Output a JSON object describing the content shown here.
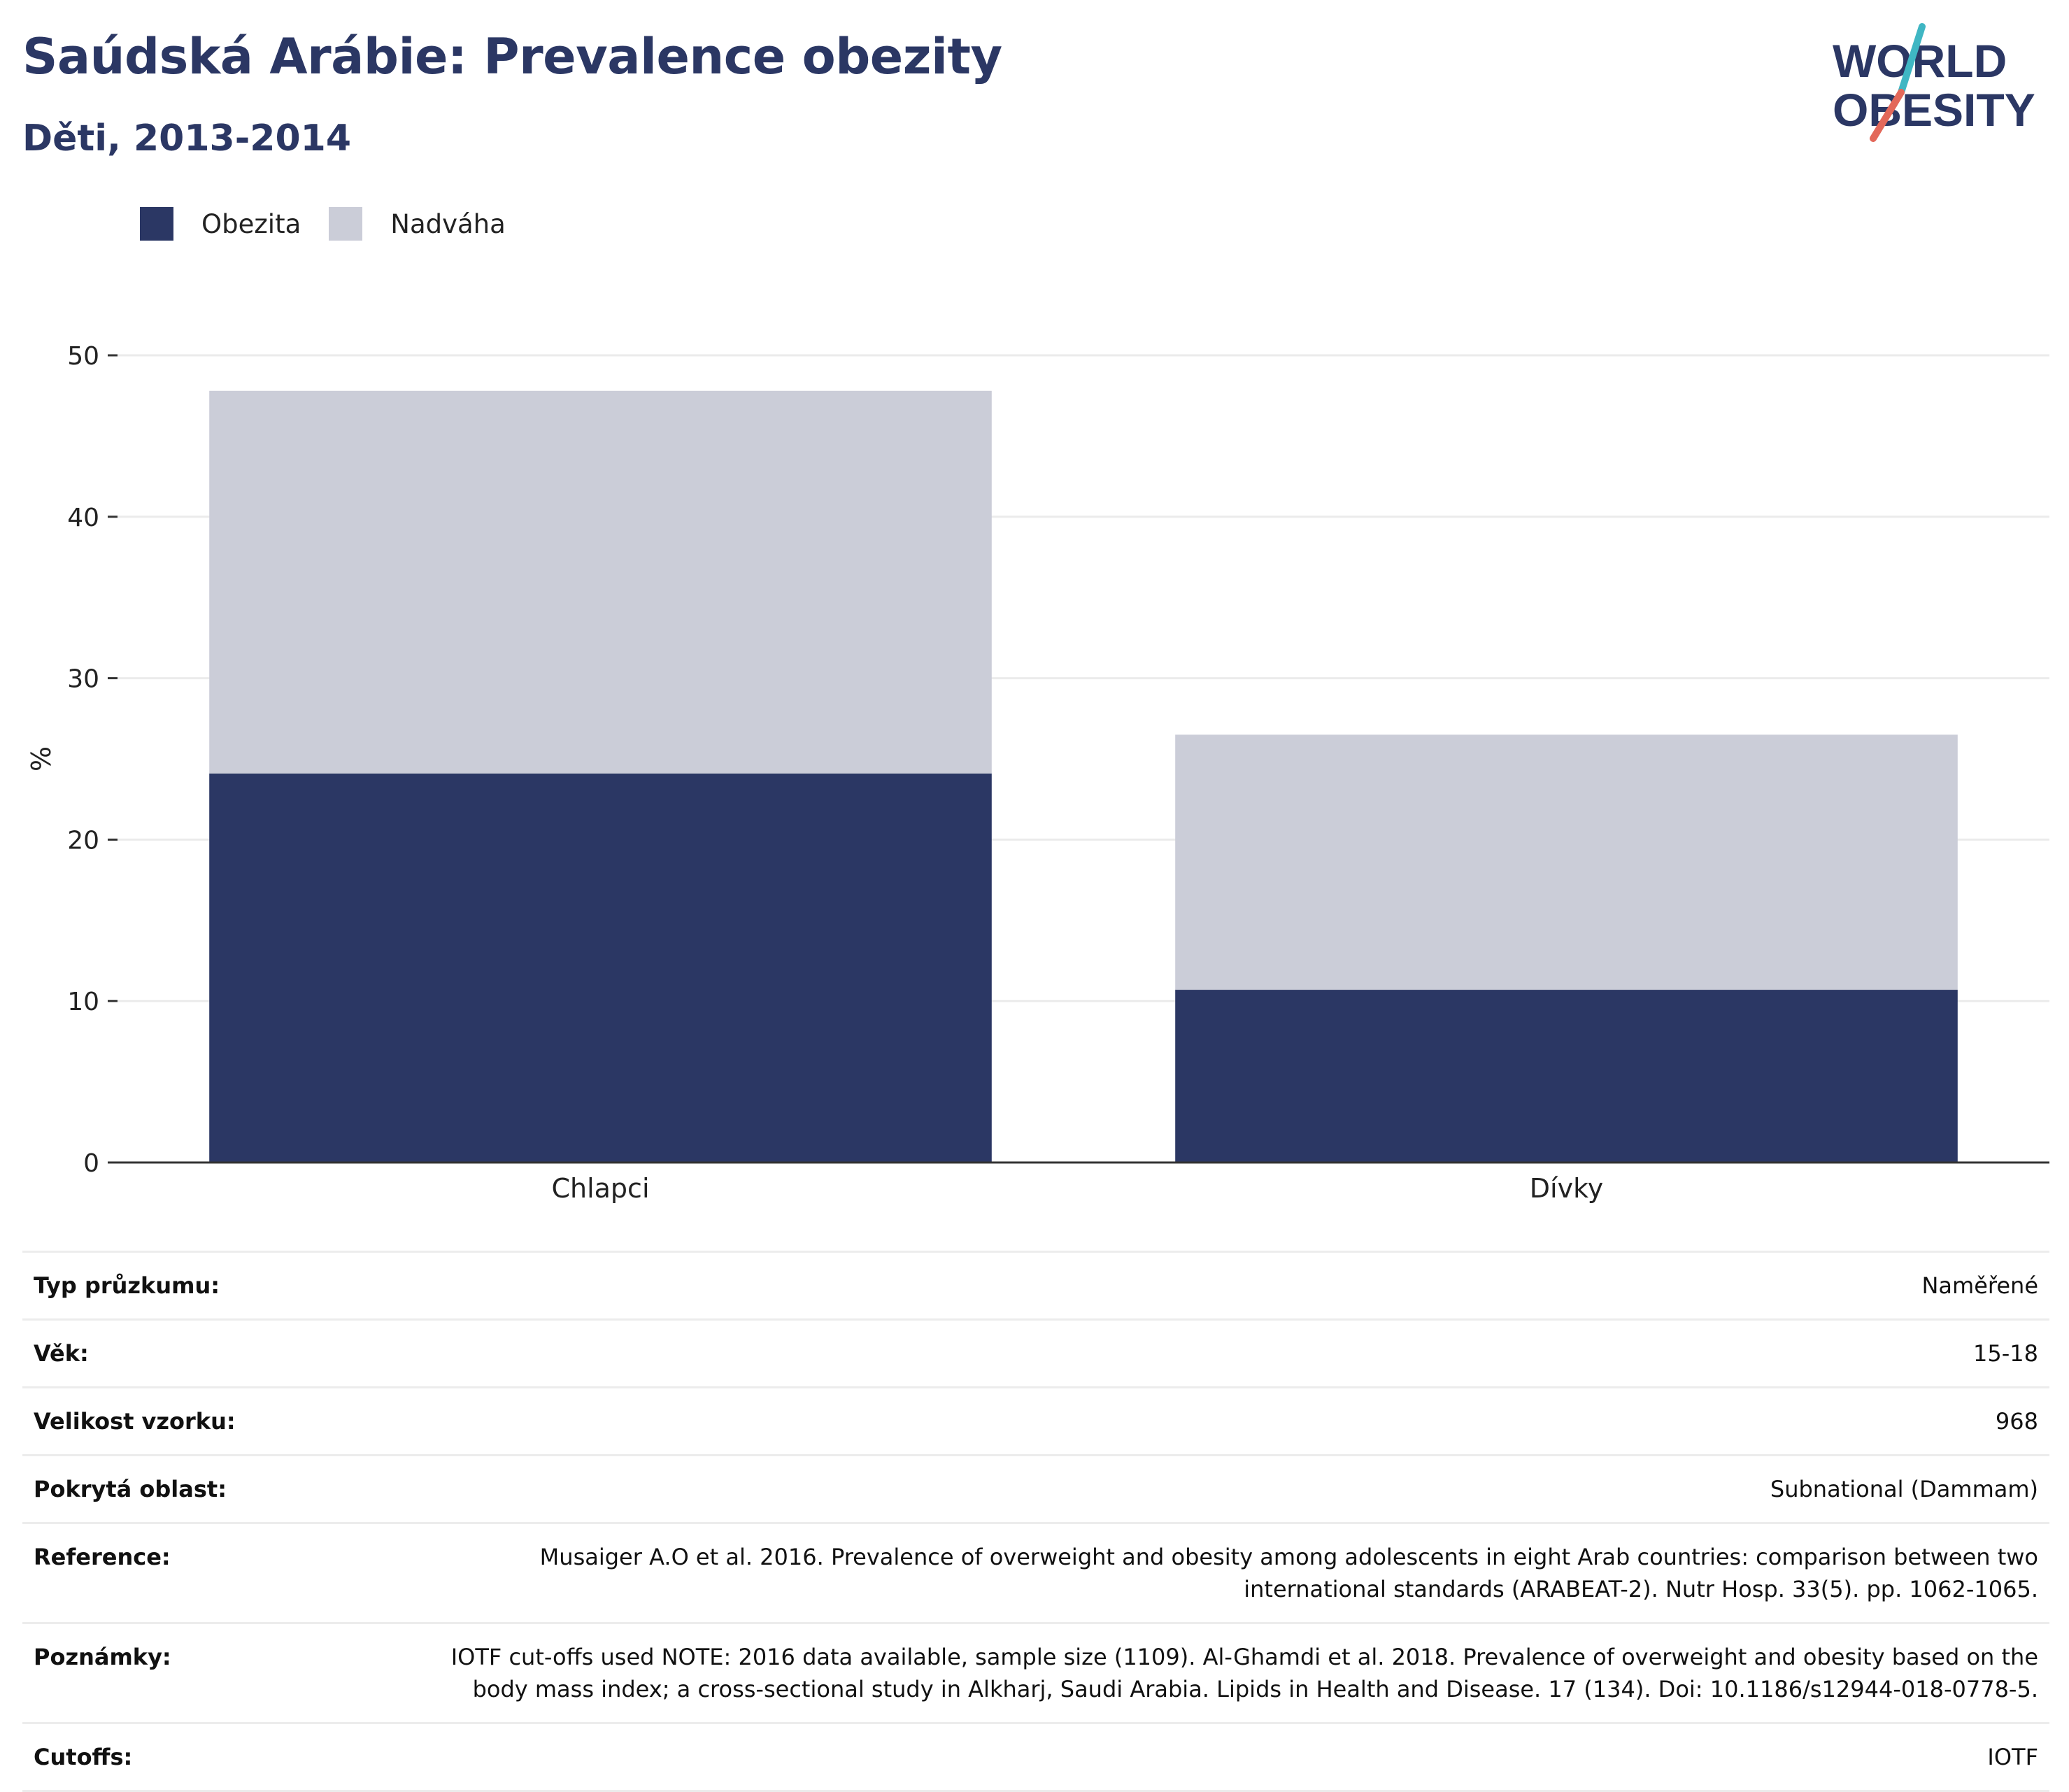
{
  "header": {
    "title": "Saúdská Arábie: Prevalence obezity",
    "subtitle": "Děti, 2013-2014"
  },
  "logo": {
    "line1": "WORLD",
    "line2": "OBESITY",
    "colors": {
      "text": "#2b3764",
      "slash_teal": "#3fb6c3",
      "slash_red": "#e3685a"
    }
  },
  "legend": [
    {
      "label": "Obezita",
      "color": "#2b3764"
    },
    {
      "label": "Nadváha",
      "color": "#cbcdd8"
    }
  ],
  "chart_data": {
    "type": "bar",
    "stacked": true,
    "categories": [
      "Chlapci",
      "Dívky"
    ],
    "series": [
      {
        "name": "Obezita",
        "values": [
          24.1,
          10.7
        ],
        "color": "#2b3764"
      },
      {
        "name": "Nadváha",
        "values": [
          23.7,
          15.8
        ],
        "color": "#cbcdd8"
      }
    ],
    "ylabel": "%",
    "ylim": [
      0,
      50
    ],
    "yticks": [
      0,
      10,
      20,
      30,
      40,
      50
    ],
    "grid": true,
    "legend_position": "top-left"
  },
  "meta": [
    {
      "key": "Typ průzkumu:",
      "value": "Naměřené"
    },
    {
      "key": "Věk:",
      "value": "15-18"
    },
    {
      "key": "Velikost vzorku:",
      "value": "968"
    },
    {
      "key": "Pokrytá oblast:",
      "value": "Subnational (Dammam)"
    },
    {
      "key": "Reference:",
      "value": "Musaiger A.O et al. 2016. Prevalence of overweight and obesity among adolescents in eight Arab countries: comparison between two international standards (ARABEAT-2). Nutr Hosp. 33(5). pp. 1062-1065."
    },
    {
      "key": "Poznámky:",
      "value": "IOTF cut-offs used NOTE: 2016 data available, sample size (1109). Al-Ghamdi et al. 2018. Prevalence of overweight and obesity based on the body mass index; a cross-sectional study in Alkharj, Saudi Arabia. Lipids in Health and Disease. 17 (134). Doi: 10.1186/s12944-018-0778-5."
    },
    {
      "key": "Cutoffs:",
      "value": "IOTF"
    }
  ]
}
